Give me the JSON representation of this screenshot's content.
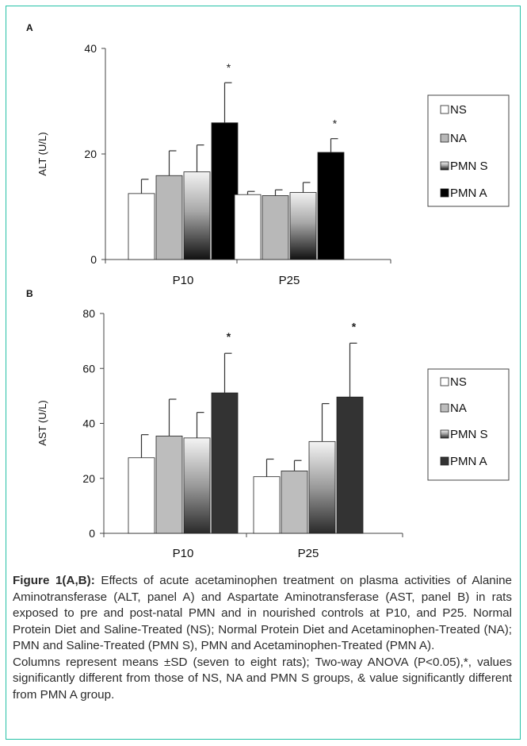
{
  "chart_data": [
    {
      "type": "bar",
      "panel_label": "A",
      "ylabel": "ALT (U/L)",
      "ylim": [
        0,
        40
      ],
      "yticks": [
        0,
        20,
        40
      ],
      "categories": [
        "P10",
        "P25"
      ],
      "series": [
        {
          "name": "NS",
          "values": [
            12.5,
            12.3
          ],
          "errors": [
            2.7,
            0.6
          ]
        },
        {
          "name": "NA",
          "values": [
            15.9,
            12.1
          ],
          "errors": [
            4.7,
            1.1
          ]
        },
        {
          "name": "PMN S",
          "values": [
            16.6,
            12.7
          ],
          "errors": [
            5.1,
            1.9
          ]
        },
        {
          "name": "PMN A",
          "values": [
            25.9,
            20.3
          ],
          "errors": [
            7.6,
            2.6
          ]
        }
      ],
      "annotations": [
        {
          "category": "P10",
          "series": "PMN A",
          "text": "*"
        },
        {
          "category": "P25",
          "series": "PMN A",
          "text": "*"
        }
      ],
      "legend": "right",
      "grid": false
    },
    {
      "type": "bar",
      "panel_label": "B",
      "ylabel": "AST (U/L)",
      "ylim": [
        0,
        80
      ],
      "yticks": [
        0,
        20,
        40,
        60,
        80
      ],
      "categories": [
        "P10",
        "P25"
      ],
      "series": [
        {
          "name": "NS",
          "values": [
            27.5,
            20.6
          ],
          "errors": [
            8.4,
            6.4
          ]
        },
        {
          "name": "NA",
          "values": [
            35.4,
            22.7
          ],
          "errors": [
            13.4,
            3.8
          ]
        },
        {
          "name": "PMN S",
          "values": [
            34.7,
            33.4
          ],
          "errors": [
            9.3,
            13.8
          ]
        },
        {
          "name": "PMN A",
          "values": [
            51.1,
            49.6
          ],
          "errors": [
            14.4,
            19.6
          ]
        }
      ],
      "annotations": [
        {
          "category": "P10",
          "series": "PMN A",
          "text": "*"
        },
        {
          "category": "P25",
          "series": "PMN A",
          "text": "*"
        }
      ],
      "legend": "right",
      "grid": false
    }
  ],
  "caption": {
    "figure_label": "Figure 1(A,B):",
    "text": " Effects of acute acetaminophen treatment on plasma activities of Alanine Aminotransferase (ALT, panel A) and Aspartate Aminotransferase (AST, panel B) in rats exposed to pre and post-natal PMN and in nourished controls at P10, and P25. Normal Protein Diet and Saline-Treated (NS); Normal Protein Diet and Acetaminophen-Treated (NA); PMN and Saline-Treated (PMN S), PMN and Acetaminophen-Treated (PMN A).",
    "note": "Columns represent means ±SD (seven to eight rats); Two-way ANOVA (P<0.05),*, values significantly different from those of NS, NA and PMN S groups, & value significantly different from PMN A group."
  },
  "colors": {
    "frame": "#26c1a6"
  }
}
